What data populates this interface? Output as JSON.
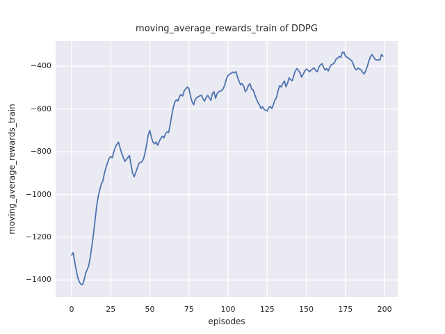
{
  "chart_data": {
    "type": "line",
    "title": "moving_average_rewards_train of DDPG",
    "xlabel": "episodes",
    "ylabel": "moving_average_rewards_train",
    "grid": true,
    "legend_position": "none",
    "xlim": [
      -10.2,
      208.4
    ],
    "ylim": [
      -1480,
      -282
    ],
    "x_ticks": [
      {
        "v": 0,
        "label": "0"
      },
      {
        "v": 25,
        "label": "25"
      },
      {
        "v": 50,
        "label": "50"
      },
      {
        "v": 75,
        "label": "75"
      },
      {
        "v": 100,
        "label": "100"
      },
      {
        "v": 125,
        "label": "125"
      },
      {
        "v": 150,
        "label": "150"
      },
      {
        "v": 175,
        "label": "175"
      },
      {
        "v": 200,
        "label": "200"
      }
    ],
    "y_ticks": [
      {
        "v": -400,
        "label": "−400"
      },
      {
        "v": -600,
        "label": "−600"
      },
      {
        "v": -800,
        "label": "−800"
      },
      {
        "v": -1000,
        "label": "−1000"
      },
      {
        "v": -1200,
        "label": "−1200"
      },
      {
        "v": -1400,
        "label": "−1400"
      }
    ],
    "colors": {
      "figure_bg": "#ffffff",
      "plot_bg": "#eaeaf2",
      "grid": "#ffffff",
      "text": "#262626",
      "line": "#4c72b0"
    },
    "series": [
      {
        "name": "moving_average_rewards_train",
        "color": "#4c72b0",
        "x_start": 0,
        "x_step": 1,
        "values": [
          -1283,
          -1272,
          -1315,
          -1355,
          -1390,
          -1410,
          -1420,
          -1422,
          -1400,
          -1368,
          -1350,
          -1332,
          -1290,
          -1240,
          -1185,
          -1120,
          -1055,
          -1010,
          -978,
          -952,
          -936,
          -900,
          -873,
          -850,
          -832,
          -822,
          -828,
          -800,
          -778,
          -765,
          -755,
          -782,
          -806,
          -826,
          -845,
          -836,
          -827,
          -818,
          -862,
          -900,
          -917,
          -897,
          -876,
          -854,
          -850,
          -846,
          -832,
          -803,
          -765,
          -720,
          -700,
          -732,
          -755,
          -763,
          -754,
          -770,
          -752,
          -738,
          -727,
          -735,
          -716,
          -707,
          -710,
          -672,
          -630,
          -592,
          -567,
          -557,
          -562,
          -541,
          -532,
          -539,
          -514,
          -505,
          -497,
          -505,
          -541,
          -566,
          -580,
          -555,
          -547,
          -542,
          -538,
          -536,
          -553,
          -563,
          -545,
          -536,
          -548,
          -559,
          -527,
          -519,
          -550,
          -528,
          -519,
          -516,
          -514,
          -503,
          -485,
          -457,
          -443,
          -436,
          -433,
          -427,
          -431,
          -425,
          -449,
          -470,
          -487,
          -481,
          -494,
          -519,
          -509,
          -490,
          -481,
          -506,
          -510,
          -531,
          -551,
          -568,
          -580,
          -598,
          -589,
          -601,
          -606,
          -609,
          -594,
          -588,
          -598,
          -578,
          -557,
          -545,
          -513,
          -490,
          -497,
          -480,
          -469,
          -496,
          -479,
          -454,
          -463,
          -468,
          -443,
          -421,
          -411,
          -420,
          -431,
          -451,
          -437,
          -423,
          -413,
          -418,
          -425,
          -419,
          -412,
          -408,
          -420,
          -426,
          -404,
          -393,
          -388,
          -404,
          -418,
          -410,
          -422,
          -404,
          -393,
          -389,
          -383,
          -367,
          -362,
          -354,
          -358,
          -336,
          -334,
          -352,
          -358,
          -362,
          -368,
          -374,
          -390,
          -410,
          -417,
          -408,
          -413,
          -417,
          -429,
          -436,
          -420,
          -400,
          -374,
          -355,
          -345,
          -357,
          -368,
          -371,
          -369,
          -371,
          -345,
          -353
        ]
      }
    ]
  }
}
